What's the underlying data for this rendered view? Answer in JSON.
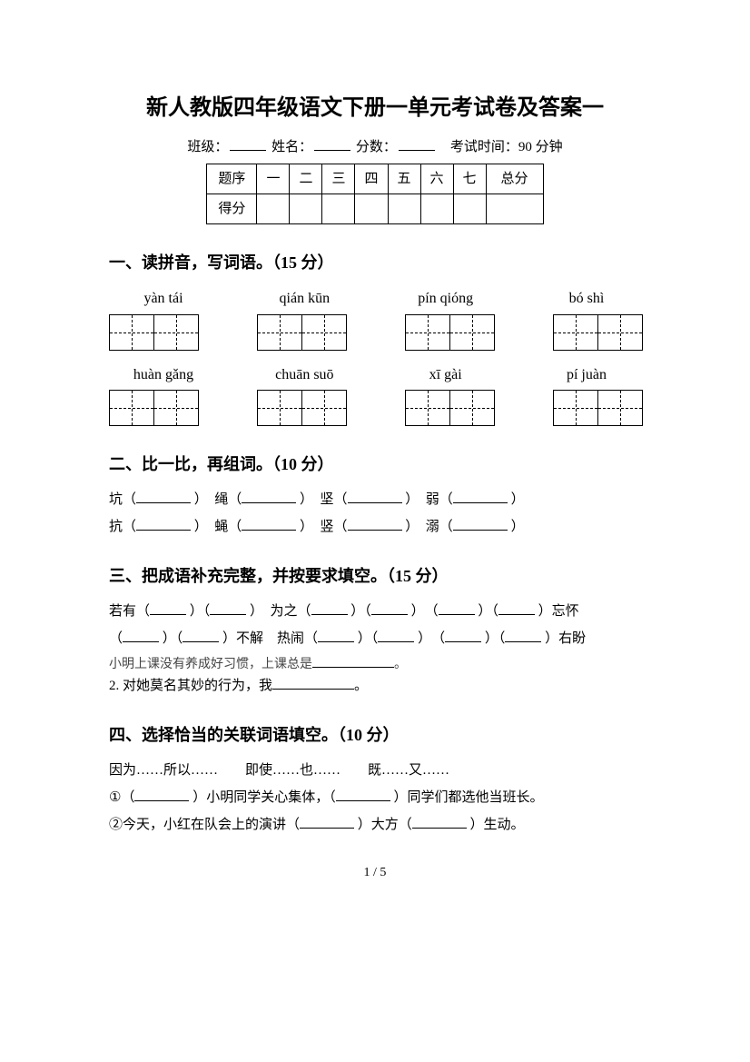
{
  "title": "新人教版四年级语文下册一单元考试卷及答案一",
  "meta": {
    "class_label": "班级：",
    "name_label": "姓名：",
    "score_label": "分数：",
    "exam_time_label": "考试时间：90 分钟"
  },
  "score_table": {
    "header_label": "题序",
    "columns": [
      "一",
      "二",
      "三",
      "四",
      "五",
      "六",
      "七"
    ],
    "total_label": "总分",
    "row2_label": "得分"
  },
  "section1": {
    "heading": "一、读拼音，写词语。（15 分）",
    "row1_pinyin": [
      "yàn tái",
      "qián kūn",
      "pín qióng",
      "bó shì"
    ],
    "row2_pinyin": [
      "huàn gǎng",
      "chuān suō",
      "xī gài",
      "pí juàn"
    ]
  },
  "section2": {
    "heading": "二、比一比，再组词。（10 分）",
    "row1": [
      "坑（",
      "）　绳（",
      "）　坚（",
      "）　弱（",
      "）"
    ],
    "row2": [
      "抗（",
      "）　蝇（",
      "）　竖（",
      "）　溺（",
      "）"
    ]
  },
  "section3": {
    "heading": "三、把成语补充完整，并按要求填空。（15 分）",
    "line1_parts": [
      "若有（",
      "）（",
      "）　为之（",
      "）（",
      "）　（",
      "）（",
      "）忘怀"
    ],
    "line2_parts": [
      "（",
      "）（",
      "）不解　热闹（",
      "）（",
      "）　（",
      "）（",
      "）右盼"
    ],
    "note1_prefix": "小明上课没有养成好习惯，上课总是",
    "note1_suffix": "。",
    "note2_prefix": "2. 对她莫名其妙的行为，我",
    "note2_suffix": "。"
  },
  "section4": {
    "heading": "四、选择恰当的关联词语填空。（10 分）",
    "options": "因为……所以……　　即使……也……　　既……又……",
    "line1_parts": [
      "①（",
      "）小明同学关心集体，（",
      "）同学们都选他当班长。"
    ],
    "line2_parts": [
      "②今天，小红在队会上的演讲（",
      "）大方（",
      "）生动。"
    ]
  },
  "page_number": "1 / 5"
}
